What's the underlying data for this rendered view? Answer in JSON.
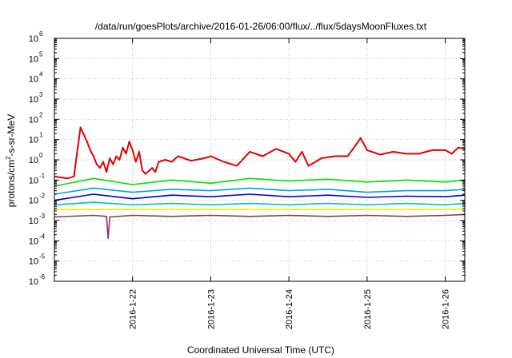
{
  "chart_data": {
    "type": "line",
    "title": "/data/run/goesPlots/archive/2016-01-26/06:00/flux/../flux/5daysMoonFluxes.txt",
    "xlabel": "Coordinated Universal Time (UTC)",
    "ylabel": {
      "prefix": "protons/cm",
      "sup": "2",
      "suffix": "-s-sr-MeV"
    },
    "yscale": "log",
    "ylim": [
      1e-06,
      1000000.0
    ],
    "xlim": [
      "2016-01-21 00:00",
      "2016-01-26 06:00"
    ],
    "grid": true,
    "y_ticks": [
      {
        "v": 1e-06,
        "base": "10",
        "exp": "-6"
      },
      {
        "v": 1e-05,
        "base": "10",
        "exp": "-5"
      },
      {
        "v": 0.0001,
        "base": "10",
        "exp": "-4"
      },
      {
        "v": 0.001,
        "base": "10",
        "exp": "-3"
      },
      {
        "v": 0.01,
        "base": "10",
        "exp": "-2"
      },
      {
        "v": 0.1,
        "base": "10",
        "exp": "-1"
      },
      {
        "v": 1.0,
        "base": "10",
        "exp": "0"
      },
      {
        "v": 10.0,
        "base": "10",
        "exp": "1"
      },
      {
        "v": 100.0,
        "base": "10",
        "exp": "2"
      },
      {
        "v": 1000.0,
        "base": "10",
        "exp": "3"
      },
      {
        "v": 10000.0,
        "base": "10",
        "exp": "4"
      },
      {
        "v": 100000.0,
        "base": "10",
        "exp": "5"
      },
      {
        "v": 1000000.0,
        "base": "10",
        "exp": "6"
      }
    ],
    "x_ticks": [
      {
        "v": "2016-01-22 00:00",
        "label": "2016-1-22"
      },
      {
        "v": "2016-01-23 00:00",
        "label": "2016-1-23"
      },
      {
        "v": "2016-01-24 00:00",
        "label": "2016-1-24"
      },
      {
        "v": "2016-01-25 00:00",
        "label": "2016-1-25"
      },
      {
        "v": "2016-01-26 00:00",
        "label": "2016-1-26"
      }
    ],
    "series": [
      {
        "color": "#e00000",
        "x": [
          "2016-01-21 00:00",
          "2016-01-21 04:00",
          "2016-01-21 06:00",
          "2016-01-21 08:00",
          "2016-01-21 10:00",
          "2016-01-21 11:00",
          "2016-01-21 12:00",
          "2016-01-21 13:00",
          "2016-01-21 14:00",
          "2016-01-21 15:00",
          "2016-01-21 16:00",
          "2016-01-21 17:00",
          "2016-01-21 18:00",
          "2016-01-21 19:00",
          "2016-01-21 20:00",
          "2016-01-21 21:00",
          "2016-01-21 22:00",
          "2016-01-21 23:00",
          "2016-01-22 00:00",
          "2016-01-22 01:00",
          "2016-01-22 02:00",
          "2016-01-22 03:00",
          "2016-01-22 04:00",
          "2016-01-22 06:00",
          "2016-01-22 07:00",
          "2016-01-22 08:00",
          "2016-01-22 10:00",
          "2016-01-22 12:00",
          "2016-01-22 14:00",
          "2016-01-22 18:00",
          "2016-01-22 22:00",
          "2016-01-23 00:00",
          "2016-01-23 04:00",
          "2016-01-23 08:00",
          "2016-01-23 12:00",
          "2016-01-23 16:00",
          "2016-01-23 20:00",
          "2016-01-24 00:00",
          "2016-01-24 02:00",
          "2016-01-24 04:00",
          "2016-01-24 06:00",
          "2016-01-24 10:00",
          "2016-01-24 14:00",
          "2016-01-24 18:00",
          "2016-01-24 20:00",
          "2016-01-24 22:00",
          "2016-01-25 00:00",
          "2016-01-25 04:00",
          "2016-01-25 08:00",
          "2016-01-25 12:00",
          "2016-01-25 16:00",
          "2016-01-25 20:00",
          "2016-01-26 00:00",
          "2016-01-26 02:00",
          "2016-01-26 04:00",
          "2016-01-26 06:00"
        ],
        "y": [
          0.15,
          0.12,
          0.15,
          40,
          8,
          3,
          1.5,
          0.6,
          0.4,
          0.8,
          0.25,
          1.2,
          0.6,
          1.5,
          1.0,
          4,
          2,
          8,
          3,
          0.8,
          2.5,
          0.3,
          0.2,
          0.4,
          0.25,
          0.8,
          1.0,
          0.8,
          1.5,
          0.9,
          1.2,
          1.5,
          0.8,
          0.5,
          2.5,
          1.5,
          3.5,
          2.0,
          0.8,
          2.5,
          0.5,
          1.2,
          1.5,
          1.5,
          4,
          12,
          3,
          1.8,
          2.5,
          2.0,
          2.0,
          3.0,
          3.0,
          2.0,
          4.0,
          3.5
        ]
      },
      {
        "color": "#00e000",
        "x": [
          "2016-01-21 00:00",
          "2016-01-21 12:00",
          "2016-01-22 00:00",
          "2016-01-22 12:00",
          "2016-01-23 00:00",
          "2016-01-23 12:00",
          "2016-01-24 00:00",
          "2016-01-24 12:00",
          "2016-01-25 00:00",
          "2016-01-25 12:00",
          "2016-01-26 00:00",
          "2016-01-26 06:00"
        ],
        "y": [
          0.05,
          0.12,
          0.06,
          0.1,
          0.07,
          0.12,
          0.09,
          0.11,
          0.08,
          0.1,
          0.08,
          0.1
        ]
      },
      {
        "color": "#00a0e0",
        "x": [
          "2016-01-21 00:00",
          "2016-01-21 12:00",
          "2016-01-22 00:00",
          "2016-01-22 12:00",
          "2016-01-23 00:00",
          "2016-01-23 12:00",
          "2016-01-24 00:00",
          "2016-01-24 12:00",
          "2016-01-25 00:00",
          "2016-01-25 12:00",
          "2016-01-26 00:00",
          "2016-01-26 06:00"
        ],
        "y": [
          0.02,
          0.04,
          0.025,
          0.035,
          0.03,
          0.04,
          0.03,
          0.035,
          0.025,
          0.03,
          0.03,
          0.035
        ]
      },
      {
        "color": "#0000d0",
        "x": [
          "2016-01-21 00:00",
          "2016-01-21 12:00",
          "2016-01-22 00:00",
          "2016-01-22 12:00",
          "2016-01-23 00:00",
          "2016-01-23 12:00",
          "2016-01-24 00:00",
          "2016-01-24 12:00",
          "2016-01-25 00:00",
          "2016-01-25 12:00",
          "2016-01-26 00:00",
          "2016-01-26 06:00"
        ],
        "y": [
          0.01,
          0.02,
          0.012,
          0.018,
          0.015,
          0.02,
          0.015,
          0.018,
          0.014,
          0.016,
          0.015,
          0.018
        ]
      },
      {
        "color": "#00c8a0",
        "x": [
          "2016-01-21 00:00",
          "2016-01-21 12:00",
          "2016-01-22 00:00",
          "2016-01-22 12:00",
          "2016-01-23 00:00",
          "2016-01-23 12:00",
          "2016-01-24 00:00",
          "2016-01-24 12:00",
          "2016-01-25 00:00",
          "2016-01-25 12:00",
          "2016-01-26 00:00",
          "2016-01-26 06:00"
        ],
        "y": [
          0.006,
          0.008,
          0.006,
          0.007,
          0.006,
          0.007,
          0.006,
          0.007,
          0.006,
          0.007,
          0.006,
          0.007
        ]
      },
      {
        "color": "#f0f000",
        "x": [
          "2016-01-21 00:00",
          "2016-01-22 00:00",
          "2016-01-23 00:00",
          "2016-01-24 00:00",
          "2016-01-25 00:00",
          "2016-01-26 00:00",
          "2016-01-26 06:00"
        ],
        "y": [
          0.0035,
          0.0035,
          0.0035,
          0.0035,
          0.0035,
          0.0035,
          0.0035
        ]
      },
      {
        "color": "#903070",
        "x": [
          "2016-01-21 00:00",
          "2016-01-21 12:00",
          "2016-01-21 16:00",
          "2016-01-21 16:30",
          "2016-01-21 17:00",
          "2016-01-22 00:00",
          "2016-01-22 12:00",
          "2016-01-23 00:00",
          "2016-01-23 12:00",
          "2016-01-24 00:00",
          "2016-01-24 12:00",
          "2016-01-25 00:00",
          "2016-01-25 12:00",
          "2016-01-26 00:00",
          "2016-01-26 06:00"
        ],
        "y": [
          0.0015,
          0.0018,
          0.0016,
          0.00013,
          0.0015,
          0.0018,
          0.0016,
          0.0018,
          0.0016,
          0.0018,
          0.0016,
          0.0018,
          0.0016,
          0.0018,
          0.002
        ]
      }
    ]
  }
}
